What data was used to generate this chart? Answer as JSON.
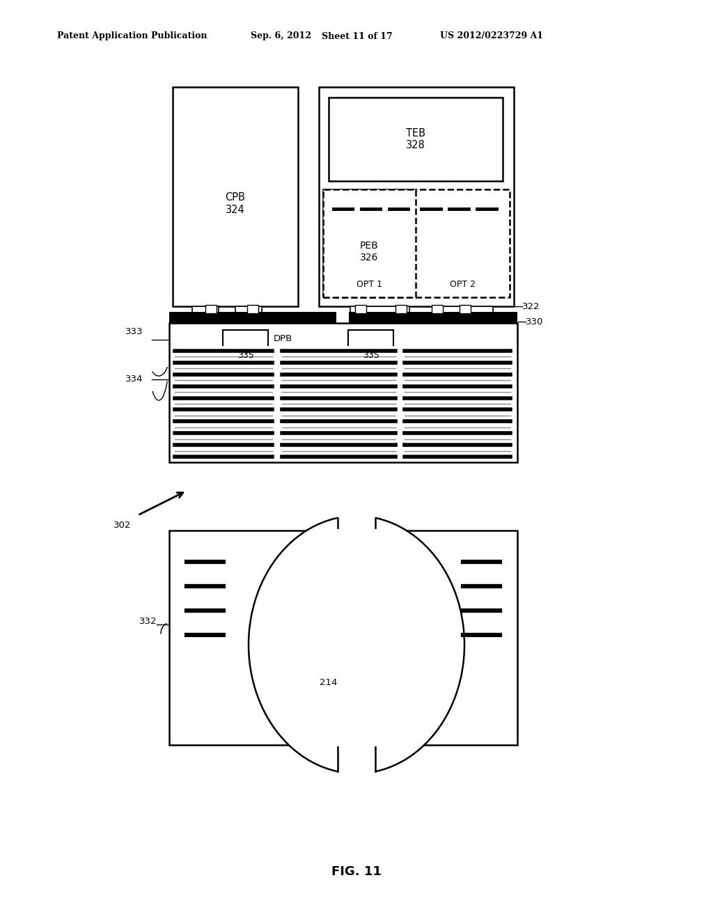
{
  "bg_color": "#ffffff",
  "header_left": "Patent Application Publication",
  "header_date": "Sep. 6, 2012",
  "header_sheet": "Sheet 11 of 17",
  "header_patent": "US 2012/0223729 A1",
  "fig_caption": "FIG. 11",
  "cpb_label": "CPB\n324",
  "teb_label": "TEB\n328",
  "peb_label": "PEB\n326",
  "opt1_label": "OPT 1",
  "opt2_label": "OPT 2",
  "dpb_label": "DPB",
  "ref_322": "322",
  "ref_330": "330",
  "ref_333": "333",
  "ref_334": "334",
  "ref_335a": "335",
  "ref_335b": "335",
  "ref_302": "302",
  "ref_332": "332",
  "ref_214": "214"
}
